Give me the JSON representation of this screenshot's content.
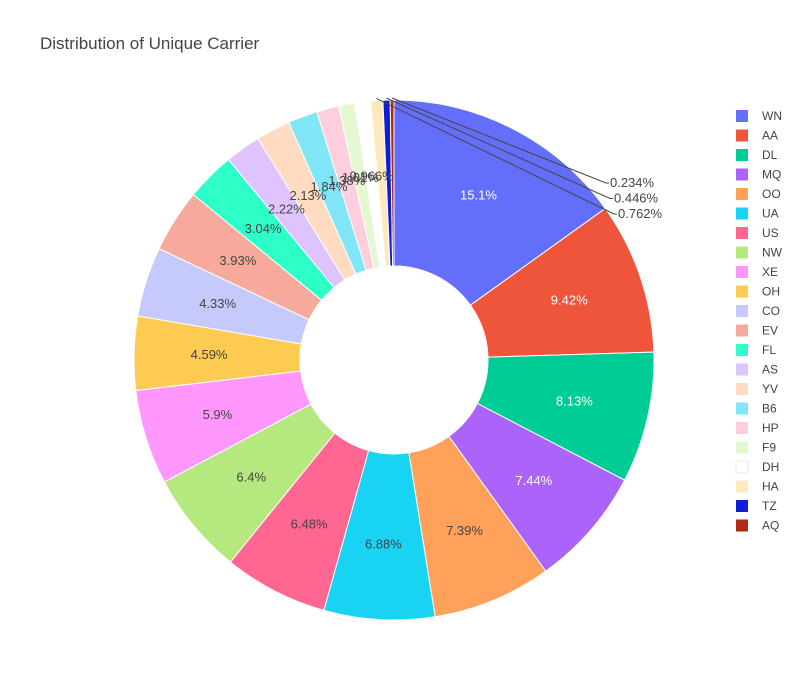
{
  "chart_data": {
    "type": "pie",
    "title": "Distribution of Unique Carrier",
    "hole": true,
    "legend_position": "right",
    "slices": [
      {
        "label": "WN",
        "value": 15.1,
        "text": "15.1%",
        "color": "#636efa"
      },
      {
        "label": "AA",
        "value": 9.42,
        "text": "9.42%",
        "color": "#EF553B"
      },
      {
        "label": "DL",
        "value": 8.13,
        "text": "8.13%",
        "color": "#00cc96"
      },
      {
        "label": "MQ",
        "value": 7.44,
        "text": "7.44%",
        "color": "#ab63fa"
      },
      {
        "label": "OO",
        "value": 7.39,
        "text": "7.39%",
        "color": "#FFA15A"
      },
      {
        "label": "UA",
        "value": 6.88,
        "text": "6.88%",
        "color": "#19d3f3"
      },
      {
        "label": "US",
        "value": 6.48,
        "text": "6.48%",
        "color": "#FF6692"
      },
      {
        "label": "NW",
        "value": 6.4,
        "text": "6.4%",
        "color": "#B6E880"
      },
      {
        "label": "XE",
        "value": 5.9,
        "text": "5.9%",
        "color": "#FF97FF"
      },
      {
        "label": "OH",
        "value": 4.59,
        "text": "4.59%",
        "color": "#FECB52"
      },
      {
        "label": "CO",
        "value": 4.33,
        "text": "4.33%",
        "color": "#c6c9fc"
      },
      {
        "label": "EV",
        "value": 3.93,
        "text": "3.93%",
        "color": "#f7a99c"
      },
      {
        "label": "FL",
        "value": 3.04,
        "text": "3.04%",
        "color": "#2effc8"
      },
      {
        "label": "AS",
        "value": 2.22,
        "text": "2.22%",
        "color": "#dfc3fc"
      },
      {
        "label": "YV",
        "value": 2.13,
        "text": "2.13%",
        "color": "#ffdcc1"
      },
      {
        "label": "B6",
        "value": 1.84,
        "text": "1.84%",
        "color": "#81e6f8"
      },
      {
        "label": "HP",
        "value": 1.38,
        "text": "1.38%",
        "color": "#ffcedc"
      },
      {
        "label": "F9",
        "value": 1.01,
        "text": "1.01%",
        "color": "#e6f7d3"
      },
      {
        "label": "DH",
        "value": 0.966,
        "text": "0.966%",
        "color": "#ffffff"
      },
      {
        "label": "HA",
        "value": 0.762,
        "text": "0.762%",
        "color": "#fde9bb"
      },
      {
        "label": "TZ",
        "value": 0.446,
        "text": "0.446%",
        "color": "#0f1ed6"
      },
      {
        "label": "AQ",
        "value": 0.234,
        "text": "0.234%",
        "color": "#b22a16"
      }
    ]
  }
}
